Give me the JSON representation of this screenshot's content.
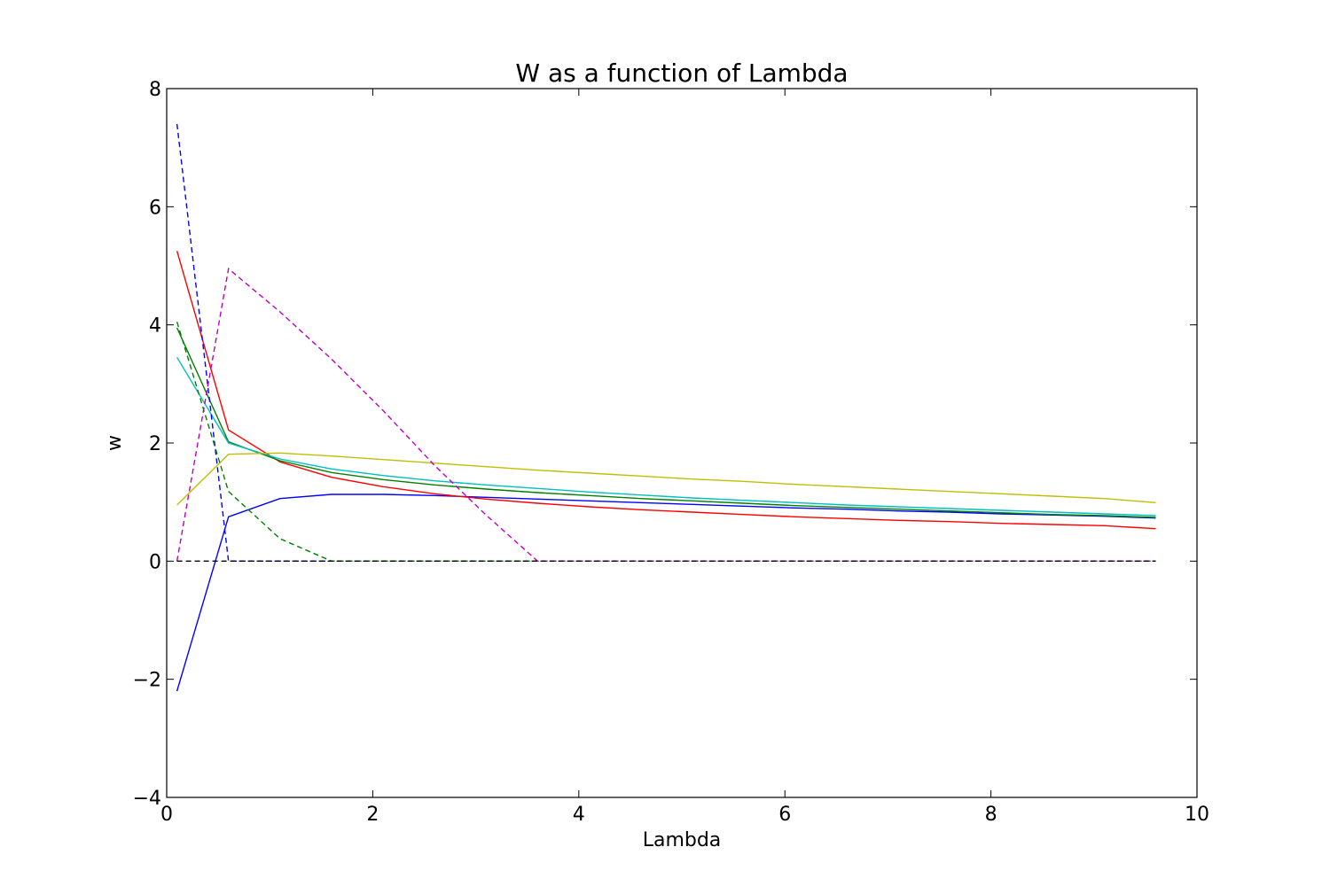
{
  "chart_data": {
    "type": "line",
    "title": "W as a function of Lambda",
    "xlabel": "Lambda",
    "ylabel": "w",
    "xlim": [
      0,
      10
    ],
    "ylim": [
      -4,
      8
    ],
    "xticks": [
      0,
      2,
      4,
      6,
      8,
      10
    ],
    "yticks": [
      -4,
      -2,
      0,
      2,
      4,
      6,
      8
    ],
    "x": [
      0.1,
      0.6,
      1.1,
      1.6,
      2.1,
      2.6,
      3.1,
      3.6,
      4.1,
      4.6,
      5.1,
      5.6,
      6.1,
      6.6,
      7.1,
      7.6,
      8.1,
      8.6,
      9.1,
      9.6
    ],
    "grid": false,
    "legend": "none",
    "series": [
      {
        "color": "#0000ff",
        "style": "solid",
        "values": [
          -2.2,
          0.75,
          1.06,
          1.13,
          1.13,
          1.11,
          1.08,
          1.05,
          1.02,
          0.99,
          0.96,
          0.93,
          0.9,
          0.88,
          0.85,
          0.83,
          0.8,
          0.78,
          0.76,
          0.73
        ]
      },
      {
        "color": "#ff0000",
        "style": "solid",
        "values": [
          5.25,
          2.22,
          1.68,
          1.42,
          1.26,
          1.14,
          1.05,
          0.98,
          0.92,
          0.87,
          0.83,
          0.79,
          0.75,
          0.72,
          0.69,
          0.67,
          0.64,
          0.62,
          0.6,
          0.55
        ]
      },
      {
        "color": "#008000",
        "style": "solid",
        "values": [
          3.95,
          2.02,
          1.7,
          1.5,
          1.38,
          1.29,
          1.22,
          1.16,
          1.11,
          1.06,
          1.02,
          0.98,
          0.94,
          0.91,
          0.88,
          0.85,
          0.82,
          0.79,
          0.77,
          0.74
        ]
      },
      {
        "color": "#00bfbf",
        "style": "solid",
        "values": [
          3.45,
          2.0,
          1.73,
          1.56,
          1.45,
          1.36,
          1.29,
          1.23,
          1.17,
          1.12,
          1.07,
          1.03,
          0.99,
          0.95,
          0.92,
          0.89,
          0.86,
          0.83,
          0.8,
          0.77
        ]
      },
      {
        "color": "#bfbf00",
        "style": "solid",
        "values": [
          0.95,
          1.81,
          1.83,
          1.78,
          1.72,
          1.66,
          1.6,
          1.54,
          1.49,
          1.44,
          1.39,
          1.35,
          1.3,
          1.26,
          1.22,
          1.18,
          1.14,
          1.1,
          1.06,
          0.99
        ]
      },
      {
        "color": "#0000ff",
        "style": "dashed",
        "values": [
          7.4,
          0.0,
          0.0,
          0.0,
          0.0,
          0.0,
          0.0,
          0.0,
          0.0,
          0.0,
          0.0,
          0.0,
          0.0,
          0.0,
          0.0,
          0.0,
          0.0,
          0.0,
          0.0,
          0.0
        ]
      },
      {
        "color": "#008000",
        "style": "dashed",
        "values": [
          4.05,
          1.18,
          0.38,
          0.0,
          0.0,
          0.0,
          0.0,
          0.0,
          0.0,
          0.0,
          0.0,
          0.0,
          0.0,
          0.0,
          0.0,
          0.0,
          0.0,
          0.0,
          0.0,
          0.0
        ]
      },
      {
        "color": "#bf00bf",
        "style": "dashed",
        "values": [
          0.0,
          4.95,
          4.22,
          3.42,
          2.55,
          1.62,
          0.78,
          0.0,
          0.0,
          0.0,
          0.0,
          0.0,
          0.0,
          0.0,
          0.0,
          0.0,
          0.0,
          0.0,
          0.0,
          0.0
        ]
      },
      {
        "color": "#000000",
        "style": "dashed",
        "values": [
          0.0,
          0.0,
          0.0,
          0.0,
          0.0,
          0.0,
          0.0,
          0.0,
          0.0,
          0.0,
          0.0,
          0.0,
          0.0,
          0.0,
          0.0,
          0.0,
          0.0,
          0.0,
          0.0,
          0.0
        ]
      }
    ]
  }
}
